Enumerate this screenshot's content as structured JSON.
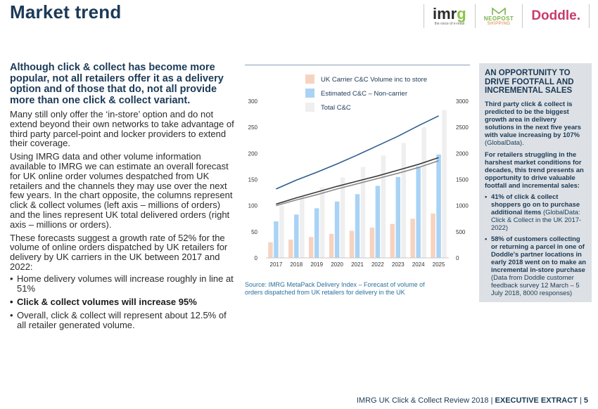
{
  "header": {
    "title": "Market trend",
    "logos": {
      "imrg": {
        "word_main": "imr",
        "word_g": "g",
        "tag": "the voice of e-retail"
      },
      "neopost": {
        "line1": "NEOPOST",
        "line2": "SHIPPING"
      },
      "doddle": {
        "word": "Doddle."
      }
    }
  },
  "left": {
    "lead": "Although click & collect has become more popular, not all retailers offer it as a delivery option and of those that do, not all provide more than one click & collect variant.",
    "para1": "Many still only offer the ‘in-store’ option and do not extend beyond their own networks to take advantage of third party parcel-point and locker providers to extend their coverage.",
    "para2": "Using IMRG data and other volume information available to IMRG we can estimate an overall forecast for UK online order volumes despatched from UK retailers and the channels they may use over the next few years. In the chart opposite, the columns represent click & collect volumes (left axis – millions of orders) and the lines represent UK total delivered orders (right axis – millions or orders).",
    "para3": "These forecasts suggest a growth rate of 52% for the volume of online orders dispatched by UK retailers for delivery by UK carriers in the UK between 2017 and 2022:",
    "bullets": [
      "Home delivery volumes will increase roughly in line at 51%",
      "Click & collect volumes will increase 95%",
      "Overall, click & collect will represent about 12.5% of all retailer generated volume."
    ]
  },
  "chart_data": {
    "type": "bar",
    "categories": [
      "2017",
      "2018",
      "2019",
      "2020",
      "2021",
      "2022",
      "2023",
      "2024",
      "2025"
    ],
    "series": [
      {
        "name": "UK Carrier C&C Volume inc to store",
        "kind": "bar",
        "axis": "left",
        "color": "#f6d3c0",
        "values": [
          30,
          35,
          40,
          46,
          52,
          58,
          65,
          75,
          85
        ]
      },
      {
        "name": "Estimated C&C – Non-carrier",
        "kind": "bar",
        "axis": "left",
        "color": "#a9d3f5",
        "values": [
          70,
          83,
          95,
          108,
          122,
          138,
          155,
          175,
          198
        ]
      },
      {
        "name": "Total C&C",
        "kind": "bar",
        "axis": "left",
        "color": "#efefef",
        "values": [
          100,
          118,
          135,
          154,
          174,
          196,
          220,
          250,
          283
        ]
      },
      {
        "name": "",
        "kind": "line",
        "axis": "right",
        "color": "#2e5d8f",
        "values": [
          1320,
          1490,
          1640,
          1800,
          1970,
          2150,
          2330,
          2530,
          2720
        ]
      },
      {
        "name": "",
        "kind": "line",
        "axis": "right",
        "color": "#3a3a3a",
        "values": [
          1030,
          1150,
          1260,
          1370,
          1470,
          1570,
          1680,
          1790,
          1920
        ]
      },
      {
        "name": "",
        "kind": "line",
        "axis": "right",
        "color": "#8a8a8a",
        "values": [
          1000,
          1110,
          1210,
          1320,
          1420,
          1520,
          1620,
          1730,
          1860
        ]
      }
    ],
    "yleft_ticks": [
      "0",
      "50",
      "100",
      "150",
      "200",
      "250",
      "300"
    ],
    "yright_ticks": [
      "0",
      "500",
      "1000",
      "1500",
      "2000",
      "2500",
      "3000"
    ],
    "ylim_left": [
      0,
      300
    ],
    "ylim_right": [
      0,
      3000
    ],
    "legend_position": "top-center",
    "grid": false,
    "source": "Source: IMRG MetaPack Delivery Index – Forecast of volume of orders dispatched from UK retailers for delivery in the UK"
  },
  "sidebar": {
    "title": "AN OPPORTUNITY TO DRIVE FOOTFALL AND INCREMENTAL SALES",
    "text1": "Third party click & collect is predicted to be the biggest growth area in delivery solutions in the next five years with value increasing by 107%",
    "text1_src": "(GlobalData).",
    "text2": "For retailers struggling in the harshest market conditions for decades, this trend presents an opportunity to drive valuable footfall and incremental sales:",
    "items": [
      {
        "main": "41% of click & collect shoppers go on to purchase additional items",
        "src": "(GlobalData: Click & Collect in the UK 2017-2022)"
      },
      {
        "main": "58% of customers collecting or returning a parcel in one of Doddle's partner locations in early 2018 went on to make an incremental in-store purchase",
        "src": "(Data from Doddle customer feedback survey 12 March – 5 July 2018, 8000 responses)"
      }
    ]
  },
  "footer": {
    "publication": "IMRG UK Click & Collect Review 2018",
    "section": "EXECUTIVE EXTRACT",
    "page": "5"
  }
}
